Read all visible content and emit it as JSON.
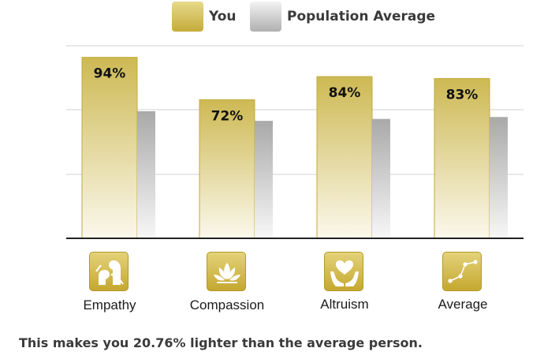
{
  "legend": [
    {
      "label": "You",
      "color": "#c9b44a"
    },
    {
      "label": "Population Average",
      "color": "#b5b5b5"
    }
  ],
  "chart_data": {
    "type": "bar",
    "categories": [
      "Empathy",
      "Compassion",
      "Altruism",
      "Average"
    ],
    "series": [
      {
        "name": "You",
        "values": [
          94,
          72,
          84,
          83
        ],
        "labels": [
          "94%",
          "72%",
          "84%",
          "83%"
        ]
      },
      {
        "name": "Population Average",
        "values": [
          66,
          61,
          62,
          63
        ]
      }
    ],
    "ylim": [
      0,
      100
    ],
    "grid": true,
    "legend_position": "top"
  },
  "icons": [
    "faces-icon",
    "lotus-icon",
    "heart-hands-icon",
    "line-graph-icon"
  ],
  "footer": "This makes you 20.76% lighter than the average person."
}
